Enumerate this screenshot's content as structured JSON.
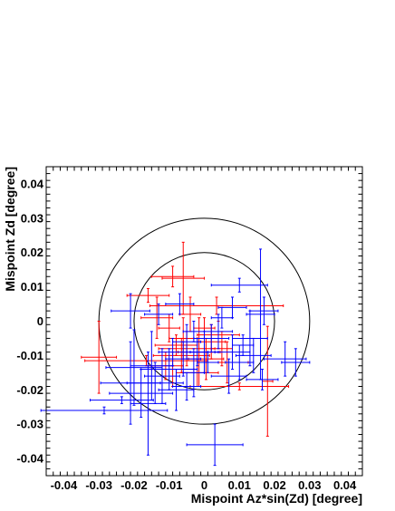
{
  "chart_data": {
    "type": "scatter",
    "xlabel": "Mispoint Az*sin(Zd) [degree]",
    "ylabel": "Mispoint Zd [degree]",
    "xlim": [
      -0.045,
      0.045
    ],
    "ylim": [
      -0.045,
      0.045
    ],
    "x_ticks": [
      -0.04,
      -0.03,
      -0.02,
      -0.01,
      0,
      0.01,
      0.02,
      0.03,
      0.04
    ],
    "y_ticks": [
      -0.04,
      -0.03,
      -0.02,
      -0.01,
      0,
      0.01,
      0.02,
      0.03,
      0.04
    ],
    "x_tick_labels": [
      "-0.04",
      "-0.03",
      "-0.02",
      "-0.01",
      "0",
      "0.01",
      "0.02",
      "0.03",
      "0.04"
    ],
    "y_tick_labels": [
      "-0.04",
      "-0.03",
      "-0.02",
      "-0.01",
      "0",
      "0.01",
      "0.02",
      "0.03",
      "0.04"
    ],
    "grid": false,
    "circles": [
      {
        "cx": 0,
        "cy": 0,
        "r": 0.02,
        "color": "#000000"
      },
      {
        "cx": 0,
        "cy": 0,
        "r": 0.03,
        "color": "#000000"
      }
    ],
    "series": [
      {
        "color": "#ff0000",
        "points": [
          {
            "x": -0.0165,
            "y": -0.0115,
            "ex": 0.0175,
            "ey": 0.0015
          },
          {
            "x": -0.03,
            "y": -0.0105,
            "ex": 0.005,
            "ey": 0.0105
          },
          {
            "x": -0.0015,
            "y": -0.009,
            "ex": 0.006,
            "ey": 0.01
          },
          {
            "x": -0.009,
            "y": 0.013,
            "ex": 0.006,
            "ey": 0.003
          },
          {
            "x": -0.006,
            "y": 0.0125,
            "ex": 0.006,
            "ey": 0.0105
          },
          {
            "x": -0.016,
            "y": 0.0075,
            "ex": 0.006,
            "ey": 0.002
          },
          {
            "x": -0.0135,
            "y": 0.001,
            "ex": 0.0045,
            "ey": 0.006
          },
          {
            "x": 0.0035,
            "y": 0.0045,
            "ex": 0.019,
            "ey": 0.0025
          },
          {
            "x": -0.006,
            "y": -0.005,
            "ex": 0.004,
            "ey": 0.006
          },
          {
            "x": -0.005,
            "y": -0.008,
            "ex": 0.008,
            "ey": 0.005
          },
          {
            "x": -0.0065,
            "y": -0.01,
            "ex": 0.008,
            "ey": 0.005
          },
          {
            "x": -0.009,
            "y": -0.014,
            "ex": 0.006,
            "ey": 0.005
          },
          {
            "x": -0.011,
            "y": -0.013,
            "ex": 0.005,
            "ey": 0.004
          },
          {
            "x": -0.002,
            "y": -0.015,
            "ex": 0.006,
            "ey": 0.004
          },
          {
            "x": 0.0005,
            "y": -0.011,
            "ex": 0.005,
            "ey": 0.006
          },
          {
            "x": 0.0065,
            "y": -0.012,
            "ex": 0.006,
            "ey": 0.006
          },
          {
            "x": 0.01,
            "y": -0.019,
            "ex": 0.014,
            "ey": 0.001
          },
          {
            "x": 0.018,
            "y": -0.0175,
            "ex": 0.0015,
            "ey": 0.016
          },
          {
            "x": 0.004,
            "y": -0.004,
            "ex": 0.006,
            "ey": 0.004
          },
          {
            "x": 0.005,
            "y": -0.008,
            "ex": 0.003,
            "ey": 0.005
          },
          {
            "x": -0.004,
            "y": 0.002,
            "ex": 0.003,
            "ey": 0.005
          },
          {
            "x": -0.01,
            "y": -0.002,
            "ex": 0.003,
            "ey": 0.004
          },
          {
            "x": 0.002,
            "y": -0.006,
            "ex": 0.004,
            "ey": 0.005
          },
          {
            "x": -0.008,
            "y": -0.007,
            "ex": 0.006,
            "ey": 0.003
          },
          {
            "x": 0.0,
            "y": -0.002,
            "ex": 0.003,
            "ey": 0.003
          }
        ]
      },
      {
        "color": "#0000ff",
        "points": [
          {
            "x": -0.0285,
            "y": -0.026,
            "ex": 0.018,
            "ey": 0.001
          },
          {
            "x": -0.021,
            "y": -0.018,
            "ex": 0.0085,
            "ey": 0.012
          },
          {
            "x": -0.0235,
            "y": -0.023,
            "ex": 0.009,
            "ey": 0.001
          },
          {
            "x": -0.021,
            "y": 0.003,
            "ex": 0.0055,
            "ey": 0.005
          },
          {
            "x": -0.02,
            "y": -0.0135,
            "ex": 0.008,
            "ey": 0.011
          },
          {
            "x": -0.018,
            "y": -0.021,
            "ex": 0.009,
            "ey": 0.007
          },
          {
            "x": -0.015,
            "y": -0.013,
            "ex": 0.006,
            "ey": 0.01
          },
          {
            "x": -0.014,
            "y": -0.018,
            "ex": 0.008,
            "ey": 0.006
          },
          {
            "x": -0.012,
            "y": -0.016,
            "ex": 0.005,
            "ey": 0.008
          },
          {
            "x": -0.01,
            "y": -0.014,
            "ex": 0.008,
            "ey": 0.006
          },
          {
            "x": -0.016,
            "y": -0.024,
            "ex": 0.005,
            "ey": 0.015
          },
          {
            "x": -0.008,
            "y": -0.02,
            "ex": 0.005,
            "ey": 0.006
          },
          {
            "x": -0.006,
            "y": -0.011,
            "ex": 0.005,
            "ey": 0.005
          },
          {
            "x": -0.005,
            "y": -0.006,
            "ex": 0.004,
            "ey": 0.005
          },
          {
            "x": -0.003,
            "y": -0.015,
            "ex": 0.003,
            "ey": 0.007
          },
          {
            "x": 0.0,
            "y": -0.009,
            "ex": 0.004,
            "ey": 0.006
          },
          {
            "x": 0.002,
            "y": -0.005,
            "ex": 0.005,
            "ey": 0.004
          },
          {
            "x": 0.004,
            "y": -0.003,
            "ex": 0.004,
            "ey": 0.005
          },
          {
            "x": 0.008,
            "y": -0.009,
            "ex": 0.005,
            "ey": 0.005
          },
          {
            "x": 0.01,
            "y": -0.012,
            "ex": 0.004,
            "ey": 0.005
          },
          {
            "x": 0.014,
            "y": -0.01,
            "ex": 0.005,
            "ey": 0.005
          },
          {
            "x": 0.016,
            "y": 0.002,
            "ex": 0.004,
            "ey": 0.019
          },
          {
            "x": 0.0165,
            "y": -0.017,
            "ex": 0.0045,
            "ey": 0.003
          },
          {
            "x": 0.023,
            "y": -0.011,
            "ex": 0.006,
            "ey": 0.005
          },
          {
            "x": 0.026,
            "y": -0.012,
            "ex": 0.004,
            "ey": 0.004
          },
          {
            "x": 0.01,
            "y": 0.0105,
            "ex": 0.008,
            "ey": 0.002
          },
          {
            "x": 0.017,
            "y": 0.003,
            "ex": 0.004,
            "ey": 0.004
          },
          {
            "x": 0.013,
            "y": -0.005,
            "ex": 0.005,
            "ey": 0.008
          },
          {
            "x": 0.008,
            "y": 0.004,
            "ex": 0.004,
            "ey": 0.003
          },
          {
            "x": -0.005,
            "y": -0.019,
            "ex": 0.004,
            "ey": 0.004
          },
          {
            "x": -0.002,
            "y": -0.009,
            "ex": 0.003,
            "ey": 0.004
          },
          {
            "x": 0.007,
            "y": -0.016,
            "ex": 0.005,
            "ey": 0.005
          },
          {
            "x": 0.003,
            "y": -0.036,
            "ex": 0.008,
            "ey": 0.006
          },
          {
            "x": -0.013,
            "y": 0.002,
            "ex": 0.004,
            "ey": 0.003
          },
          {
            "x": -0.007,
            "y": 0.005,
            "ex": 0.004,
            "ey": 0.003
          },
          {
            "x": 0.005,
            "y": 0.001,
            "ex": 0.003,
            "ey": 0.003
          },
          {
            "x": -0.003,
            "y": -0.003,
            "ex": 0.003,
            "ey": 0.003
          },
          {
            "x": 0.011,
            "y": -0.007,
            "ex": 0.003,
            "ey": 0.003
          },
          {
            "x": -0.009,
            "y": -0.009,
            "ex": 0.004,
            "ey": 0.004
          },
          {
            "x": 0.001,
            "y": -0.012,
            "ex": 0.003,
            "ey": 0.003
          }
        ]
      }
    ]
  }
}
